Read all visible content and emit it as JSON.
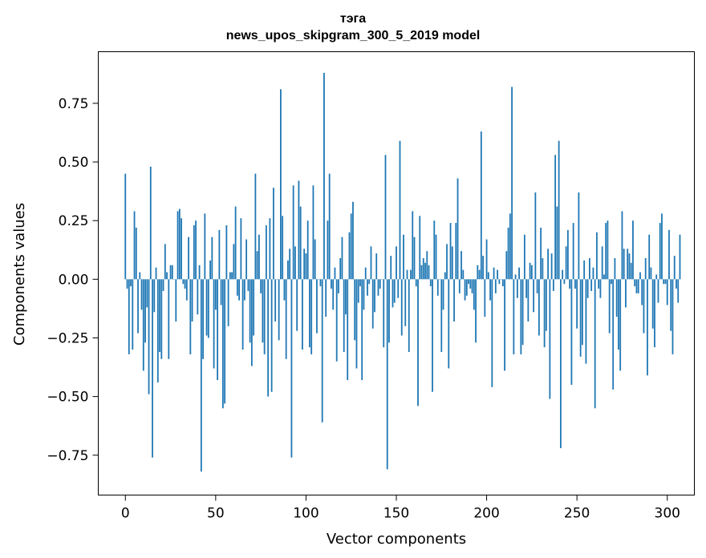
{
  "chart_data": {
    "type": "bar",
    "title_line1": "тэга",
    "title_line2": "news_upos_skipgram_300_5_2019 model",
    "xlabel": "Vector components",
    "ylabel": "Components values",
    "x_ticks": [
      "0",
      "50",
      "100",
      "150",
      "200",
      "250",
      "300"
    ],
    "y_ticks": [
      "−0.75",
      "−0.50",
      "−0.25",
      "0.00",
      "0.25",
      "0.50",
      "0.75"
    ],
    "xlim": [
      -15,
      315
    ],
    "ylim": [
      -0.92,
      0.97
    ],
    "bar_color": "#1f77b4",
    "grid": false,
    "legend": "none",
    "series": [
      {
        "values": [
          0.45,
          -0.04,
          -0.32,
          -0.03,
          -0.3,
          0.29,
          0.22,
          -0.23,
          0.03,
          -0.13,
          -0.39,
          -0.27,
          -0.12,
          -0.49,
          0.48,
          -0.76,
          -0.14,
          0.05,
          -0.44,
          -0.31,
          -0.34,
          -0.05,
          0.15,
          0.03,
          -0.34,
          0.06,
          0.06,
          0.0,
          -0.18,
          0.29,
          0.3,
          0.26,
          -0.02,
          -0.04,
          -0.09,
          0.18,
          -0.32,
          -0.18,
          0.23,
          0.25,
          -0.15,
          0.06,
          -0.82,
          -0.34,
          0.28,
          -0.24,
          -0.25,
          0.08,
          0.18,
          -0.38,
          -0.13,
          -0.43,
          0.21,
          -0.11,
          -0.55,
          -0.53,
          0.23,
          -0.2,
          0.03,
          0.03,
          0.15,
          0.31,
          -0.07,
          -0.09,
          0.26,
          -0.3,
          -0.09,
          0.17,
          -0.05,
          -0.27,
          -0.37,
          -0.24,
          0.45,
          0.12,
          0.19,
          -0.06,
          -0.27,
          -0.32,
          0.23,
          -0.5,
          0.26,
          -0.48,
          0.39,
          -0.18,
          0.0,
          -0.26,
          0.81,
          0.27,
          -0.09,
          -0.34,
          0.08,
          0.13,
          -0.76,
          0.4,
          0.14,
          -0.22,
          0.42,
          0.31,
          -0.3,
          0.13,
          0.11,
          0.25,
          -0.29,
          -0.32,
          0.4,
          0.17,
          -0.23,
          0.0,
          -0.03,
          -0.61,
          0.88,
          -0.16,
          0.25,
          0.45,
          -0.04,
          -0.13,
          0.05,
          -0.35,
          -0.06,
          0.09,
          0.18,
          -0.31,
          -0.15,
          -0.43,
          0.2,
          0.28,
          0.33,
          -0.26,
          -0.38,
          -0.1,
          -0.03,
          -0.43,
          -0.13,
          0.05,
          -0.07,
          -0.02,
          0.14,
          -0.21,
          -0.14,
          0.11,
          -0.07,
          -0.04,
          0.0,
          -0.29,
          0.53,
          -0.81,
          -0.27,
          0.1,
          -0.12,
          -0.1,
          0.14,
          -0.08,
          0.59,
          -0.24,
          0.19,
          -0.2,
          0.04,
          -0.31,
          0.04,
          0.29,
          0.18,
          -0.03,
          -0.54,
          0.27,
          0.06,
          0.09,
          0.07,
          0.12,
          0.06,
          -0.03,
          -0.48,
          0.25,
          0.19,
          -0.07,
          0.0,
          -0.31,
          -0.13,
          0.03,
          0.15,
          -0.38,
          0.24,
          0.14,
          -0.18,
          0.24,
          0.43,
          -0.06,
          0.12,
          0.04,
          -0.09,
          -0.07,
          -0.02,
          -0.04,
          -0.06,
          -0.13,
          -0.27,
          0.06,
          0.04,
          0.63,
          0.1,
          -0.16,
          0.17,
          0.03,
          -0.09,
          -0.46,
          0.05,
          -0.06,
          0.04,
          -0.02,
          0.0,
          -0.03,
          -0.39,
          0.12,
          0.22,
          0.28,
          0.82,
          -0.32,
          0.02,
          -0.08,
          0.05,
          -0.32,
          -0.28,
          0.19,
          -0.08,
          -0.18,
          0.07,
          0.06,
          -0.14,
          0.37,
          -0.06,
          -0.24,
          0.22,
          0.09,
          -0.29,
          -0.22,
          0.13,
          -0.51,
          0.11,
          -0.05,
          0.53,
          0.31,
          0.59,
          -0.72,
          0.04,
          -0.02,
          0.14,
          0.21,
          -0.04,
          -0.45,
          0.24,
          -0.04,
          -0.21,
          0.37,
          -0.33,
          -0.28,
          0.08,
          -0.36,
          -0.08,
          0.09,
          -0.05,
          0.05,
          -0.55,
          0.2,
          -0.04,
          -0.08,
          0.14,
          0.02,
          0.24,
          0.25,
          -0.23,
          -0.02,
          -0.47,
          0.09,
          -0.16,
          -0.3,
          -0.39,
          0.29,
          0.13,
          -0.12,
          0.13,
          0.11,
          0.07,
          0.25,
          -0.03,
          -0.06,
          -0.06,
          0.03,
          -0.11,
          -0.23,
          0.09,
          -0.41,
          0.19,
          0.05,
          -0.21,
          -0.29,
          0.02,
          -0.1,
          0.24,
          0.28,
          -0.02,
          -0.02,
          -0.11,
          0.21,
          -0.22,
          -0.32,
          0.1,
          -0.04,
          -0.1,
          0.19
        ]
      }
    ]
  }
}
